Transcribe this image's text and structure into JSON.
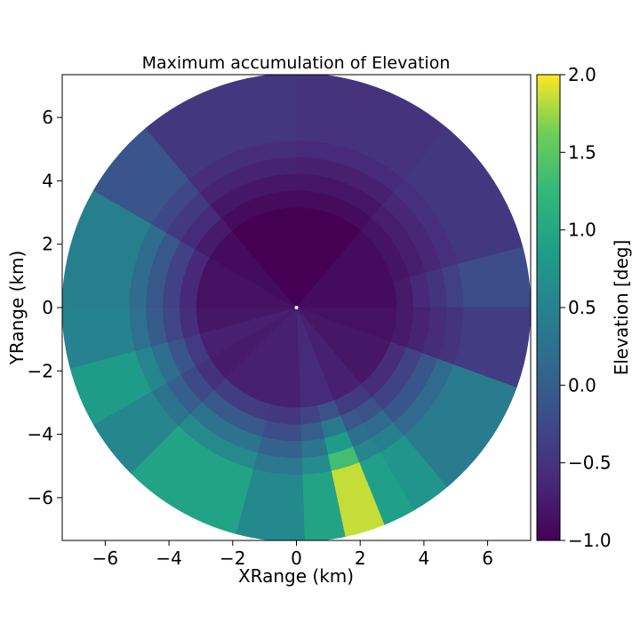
{
  "chart_data": {
    "type": "heatmap",
    "title": "Maximum accumulation of Elevation",
    "xlabel": "XRange (km)",
    "ylabel": "YRange (km)",
    "xlim": [
      -7.35,
      7.35
    ],
    "ylim": [
      -7.35,
      7.35
    ],
    "xticks": [
      -6,
      -4,
      -2,
      0,
      2,
      4,
      6
    ],
    "yticks": [
      -6,
      -4,
      -2,
      0,
      2,
      4,
      6
    ],
    "xtick_labels": [
      "−6",
      "−4",
      "−2",
      "0",
      "2",
      "4",
      "6"
    ],
    "ytick_labels": [
      "−6",
      "−4",
      "−2",
      "0",
      "2",
      "4",
      "6"
    ],
    "max_range_km": 7.35,
    "grid": false,
    "colormap": "viridis",
    "colorbar": {
      "label": "Elevation [deg]",
      "vmin": -1.0,
      "vmax": 2.0,
      "ticks": [
        -1.0,
        -0.5,
        0.0,
        0.5,
        1.0,
        1.5,
        2.0
      ],
      "tick_labels": [
        "−1.0",
        "−0.5",
        "0.0",
        "0.5",
        "1.0",
        "1.5",
        "2.0"
      ]
    },
    "sectors": [
      {
        "from_deg": 0,
        "to_deg": 40,
        "inner": -1.0,
        "outer": -0.5
      },
      {
        "from_deg": 40,
        "to_deg": 75,
        "inner": -0.9,
        "outer": -0.45
      },
      {
        "from_deg": 75,
        "to_deg": 90,
        "inner": -0.9,
        "outer": -0.2
      },
      {
        "from_deg": 90,
        "to_deg": 110,
        "inner": -0.85,
        "outer": -0.4
      },
      {
        "from_deg": 110,
        "to_deg": 140,
        "inner": -0.8,
        "outer": 0.4
      },
      {
        "from_deg": 140,
        "to_deg": 150,
        "inner": -0.7,
        "outer": 0.75
      },
      {
        "from_deg": 150,
        "to_deg": 158,
        "inner": -0.7,
        "outer": 0.9
      },
      {
        "from_deg": 158,
        "to_deg": 168,
        "inner": -0.6,
        "outer": 1.85
      },
      {
        "from_deg": 168,
        "to_deg": 178,
        "inner": -0.6,
        "outer": 0.95
      },
      {
        "from_deg": 178,
        "to_deg": 195,
        "inner": -0.7,
        "outer": 0.6
      },
      {
        "from_deg": 195,
        "to_deg": 225,
        "inner": -0.7,
        "outer": 0.95
      },
      {
        "from_deg": 225,
        "to_deg": 240,
        "inner": -0.75,
        "outer": 0.55
      },
      {
        "from_deg": 240,
        "to_deg": 255,
        "inner": -0.7,
        "outer": 0.85
      },
      {
        "from_deg": 255,
        "to_deg": 270,
        "inner": -0.8,
        "outer": 0.5
      },
      {
        "from_deg": 270,
        "to_deg": 300,
        "inner": -0.85,
        "outer": 0.45
      },
      {
        "from_deg": 300,
        "to_deg": 320,
        "inner": -0.9,
        "outer": -0.1
      },
      {
        "from_deg": 320,
        "to_deg": 360,
        "inner": -1.0,
        "outer": -0.45
      }
    ]
  }
}
